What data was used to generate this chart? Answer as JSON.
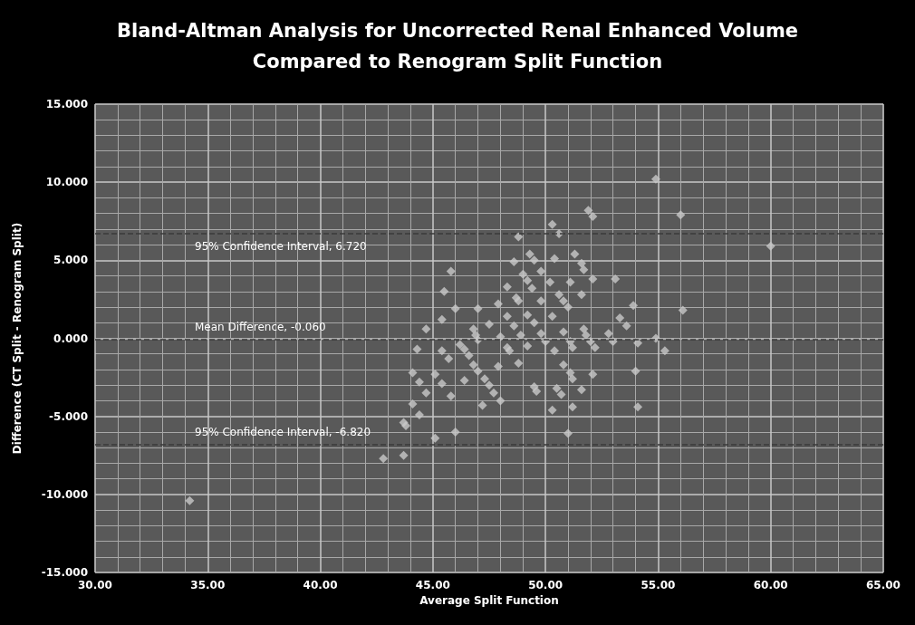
{
  "chart_data": {
    "type": "scatter",
    "title": "Bland-Altman Analysis for Uncorrected Renal Enhanced Volume\nCompared to Renogram Split Function",
    "xlabel": "Average Split Function",
    "ylabel": "Difference (CT Split - Renogram Split)",
    "marker": "diamond",
    "grid": true,
    "xlim": [
      30,
      65
    ],
    "xticks": [
      {
        "value": 30,
        "label": "30.00"
      },
      {
        "value": 35,
        "label": "35.00"
      },
      {
        "value": 40,
        "label": "40.00"
      },
      {
        "value": 45,
        "label": "45.00"
      },
      {
        "value": 50,
        "label": "50.00"
      },
      {
        "value": 55,
        "label": "55.00"
      },
      {
        "value": 60,
        "label": "60.00"
      },
      {
        "value": 65,
        "label": "65.00"
      }
    ],
    "ylim": [
      -15,
      15
    ],
    "yticks": [
      {
        "value": -15,
        "label": "-15.000"
      },
      {
        "value": -10,
        "label": "-10.000"
      },
      {
        "value": -5,
        "label": "-5.000"
      },
      {
        "value": 0,
        "label": "0.000"
      },
      {
        "value": 5,
        "label": "5.000"
      },
      {
        "value": 10,
        "label": "10.000"
      },
      {
        "value": 15,
        "label": "15.000"
      }
    ],
    "ref_lines": [
      {
        "axis": "y",
        "value": 6.72,
        "label": "95% Confidence Interval, 6.720",
        "color": "#3a3a3a",
        "line_style": "dashed"
      },
      {
        "axis": "y",
        "value": -0.06,
        "label": "Mean Difference, -0.060",
        "color": "#3a3a3a",
        "line_style": "dashed"
      },
      {
        "axis": "y",
        "value": -6.82,
        "label": "95% Confidence Interval, -6.820",
        "color": "#3a3a3a",
        "line_style": "dashed"
      }
    ],
    "series": [
      {
        "color": "#c8c8c8",
        "x": [
          34.2,
          42.8,
          43.7,
          45.1,
          46.0,
          43.7,
          43.8,
          44.1,
          44.4,
          44.7,
          44.1,
          44.4,
          45.1,
          45.4,
          45.8,
          44.3,
          45.4,
          45.7,
          46.2,
          46.4,
          46.4,
          46.6,
          46.8,
          47.0,
          47.3,
          47.5,
          47.7,
          47.2,
          48.0,
          47.9,
          48.3,
          48.4,
          48.8,
          49.2,
          49.5,
          49.6,
          48.0,
          47.0,
          46.9,
          46.8,
          48.9,
          48.8,
          49.3,
          49.5,
          48.6,
          45.8,
          45.5,
          49.0,
          49.2,
          49.8,
          48.3,
          49.4,
          48.7,
          48.8,
          47.9,
          49.8,
          46.0,
          47.0,
          48.3,
          49.2,
          45.4,
          44.7,
          47.5,
          48.6,
          49.5,
          54.9,
          51.9,
          52.1,
          56.0,
          50.3,
          50.6,
          51.3,
          50.4,
          51.6,
          51.7,
          50.2,
          51.1,
          52.1,
          53.1,
          50.6,
          51.6,
          50.8,
          51.0,
          53.9,
          56.1,
          50.3,
          53.3,
          53.6,
          50.8,
          51.7,
          51.8,
          52.8,
          49.8,
          50.0,
          51.1,
          52.0,
          54.1,
          54.9,
          53.0,
          51.2,
          52.2,
          55.3,
          50.4,
          50.8,
          51.1,
          51.2,
          52.1,
          54.0,
          50.5,
          50.7,
          51.6,
          54.1,
          50.3,
          51.2,
          51.0,
          60.0
        ],
        "values": [
          -10.4,
          -7.7,
          -7.5,
          -6.4,
          -6.0,
          -5.4,
          -5.6,
          -4.2,
          -4.9,
          -3.5,
          -2.2,
          -2.8,
          -2.3,
          -2.9,
          -3.7,
          -0.7,
          -0.8,
          -1.3,
          -0.4,
          -2.7,
          -0.7,
          -1.1,
          -1.7,
          -2.1,
          -2.6,
          -3.0,
          -3.5,
          -4.3,
          -4.0,
          -1.8,
          -0.6,
          -0.8,
          -1.6,
          -0.5,
          -3.1,
          -3.4,
          0.1,
          -0.1,
          0.2,
          0.6,
          0.2,
          6.5,
          5.4,
          5.0,
          4.9,
          4.3,
          3.0,
          4.1,
          3.7,
          4.3,
          3.3,
          3.2,
          2.6,
          2.4,
          2.2,
          2.4,
          1.9,
          1.9,
          1.4,
          1.5,
          1.2,
          0.6,
          0.9,
          0.8,
          1.0,
          10.2,
          8.2,
          7.8,
          7.9,
          7.3,
          6.7,
          5.4,
          5.1,
          4.8,
          4.4,
          3.6,
          3.6,
          3.8,
          3.8,
          2.8,
          2.8,
          2.4,
          2.0,
          2.1,
          1.8,
          1.4,
          1.3,
          0.8,
          0.4,
          0.6,
          0.2,
          0.3,
          0.3,
          -0.2,
          -0.2,
          -0.2,
          -0.3,
          0.0,
          -0.2,
          -0.6,
          -0.6,
          -0.8,
          -0.8,
          -1.7,
          -2.2,
          -2.6,
          -2.3,
          -2.1,
          -3.2,
          -3.6,
          -3.3,
          -4.4,
          -4.6,
          -4.4,
          -6.1,
          5.9
        ]
      }
    ]
  }
}
